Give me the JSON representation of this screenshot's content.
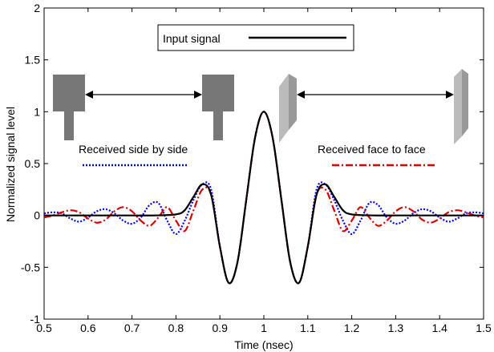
{
  "chart_data": {
    "type": "line",
    "xlabel": "Time (nsec)",
    "ylabel": "Normalized signal level",
    "xlim": [
      0.5,
      1.5
    ],
    "ylim": [
      -1,
      2
    ],
    "xticks": [
      0.5,
      0.6,
      0.7,
      0.8,
      0.9,
      1,
      1.1,
      1.2,
      1.3,
      1.4,
      1.5
    ],
    "xtick_labels": [
      "0.5",
      "0.6",
      "0.7",
      "0.8",
      "0.9",
      "1",
      "1.1",
      "1.2",
      "1.3",
      "1.4",
      "1.5"
    ],
    "yticks": [
      -1,
      -0.5,
      0,
      0.5,
      1,
      1.5,
      2
    ],
    "ytick_labels": [
      "-1",
      "-0.5",
      "0",
      "0.5",
      "1",
      "1.5",
      "2"
    ],
    "grid": false,
    "legend": {
      "placement": "top-center",
      "entries": [
        {
          "label": "Input signal",
          "color": "#000000",
          "dash": "solid"
        }
      ]
    },
    "annotations": [
      {
        "text": "Received side by side",
        "color": "#0000ff"
      },
      {
        "text": "Received face to face",
        "color": "#dd0000"
      }
    ],
    "series": [
      {
        "name": "Input signal",
        "color": "#000000",
        "dash": "solid",
        "x": [
          0.5,
          0.55,
          0.6,
          0.65,
          0.7,
          0.75,
          0.8,
          0.82,
          0.84,
          0.86,
          0.88,
          0.9,
          0.92,
          0.94,
          0.96,
          0.98,
          1.0,
          1.02,
          1.04,
          1.06,
          1.08,
          1.1,
          1.12,
          1.14,
          1.16,
          1.18,
          1.2,
          1.25,
          1.3,
          1.35,
          1.4,
          1.45,
          1.5
        ],
        "y": [
          0,
          0,
          0,
          0,
          0,
          0,
          0.01,
          0.05,
          0.18,
          0.3,
          0.2,
          -0.3,
          -0.65,
          -0.45,
          0.15,
          0.75,
          1.0,
          0.75,
          0.15,
          -0.45,
          -0.65,
          -0.3,
          0.2,
          0.3,
          0.18,
          0.05,
          0.01,
          0,
          0,
          0,
          0,
          0,
          0
        ]
      },
      {
        "name": "Received side by side",
        "color": "#0000ff",
        "dash": "dotted",
        "x": [
          0.5,
          0.52,
          0.54,
          0.56,
          0.58,
          0.6,
          0.62,
          0.64,
          0.66,
          0.68,
          0.7,
          0.72,
          0.74,
          0.76,
          0.78,
          0.8,
          0.82,
          0.84,
          0.86,
          0.88,
          0.9,
          0.92,
          0.94,
          0.96,
          0.98,
          1.0,
          1.02,
          1.04,
          1.06,
          1.08,
          1.1,
          1.12,
          1.14,
          1.16,
          1.18,
          1.2,
          1.22,
          1.24,
          1.26,
          1.28,
          1.3,
          1.32,
          1.34,
          1.36,
          1.38,
          1.4,
          1.42,
          1.44,
          1.46,
          1.48,
          1.5
        ],
        "y": [
          0.02,
          0.03,
          0.02,
          -0.03,
          -0.06,
          -0.02,
          0.04,
          0.06,
          0.02,
          -0.05,
          -0.08,
          -0.02,
          0.1,
          0.12,
          -0.05,
          -0.18,
          -0.05,
          0.15,
          0.3,
          0.25,
          -0.3,
          -0.65,
          -0.45,
          0.15,
          0.75,
          1.0,
          0.75,
          0.15,
          -0.45,
          -0.65,
          -0.3,
          0.25,
          0.3,
          0.15,
          -0.05,
          -0.18,
          -0.05,
          0.12,
          0.1,
          -0.02,
          -0.08,
          -0.05,
          0.02,
          0.06,
          0.04,
          -0.02,
          -0.06,
          -0.03,
          0.02,
          0.03,
          0.02
        ]
      },
      {
        "name": "Received face to face",
        "color": "#dd0000",
        "dash": "dashdot",
        "x": [
          0.5,
          0.52,
          0.54,
          0.56,
          0.58,
          0.6,
          0.62,
          0.64,
          0.66,
          0.68,
          0.7,
          0.72,
          0.74,
          0.76,
          0.78,
          0.8,
          0.82,
          0.84,
          0.86,
          0.88,
          0.9,
          0.92,
          0.94,
          0.96,
          0.98,
          1.0,
          1.02,
          1.04,
          1.06,
          1.08,
          1.1,
          1.12,
          1.14,
          1.16,
          1.18,
          1.2,
          1.22,
          1.24,
          1.26,
          1.28,
          1.3,
          1.32,
          1.34,
          1.36,
          1.38,
          1.4,
          1.42,
          1.44,
          1.46,
          1.48,
          1.5
        ],
        "y": [
          -0.02,
          0.0,
          0.03,
          0.05,
          0.03,
          -0.03,
          -0.07,
          -0.04,
          0.04,
          0.08,
          0.04,
          -0.05,
          -0.1,
          -0.02,
          0.08,
          -0.05,
          -0.15,
          0.05,
          0.25,
          0.2,
          -0.3,
          -0.65,
          -0.45,
          0.15,
          0.75,
          1.0,
          0.75,
          0.15,
          -0.45,
          -0.65,
          -0.3,
          0.2,
          0.25,
          0.05,
          -0.15,
          -0.05,
          0.08,
          -0.02,
          -0.1,
          -0.05,
          0.04,
          0.08,
          0.04,
          -0.04,
          -0.07,
          -0.03,
          0.03,
          0.05,
          0.03,
          0.0,
          -0.02
        ]
      }
    ]
  },
  "colors": {
    "antenna_gray": "#777777",
    "antenna_light": "#bbbbbb",
    "antenna_mid": "#999999"
  }
}
